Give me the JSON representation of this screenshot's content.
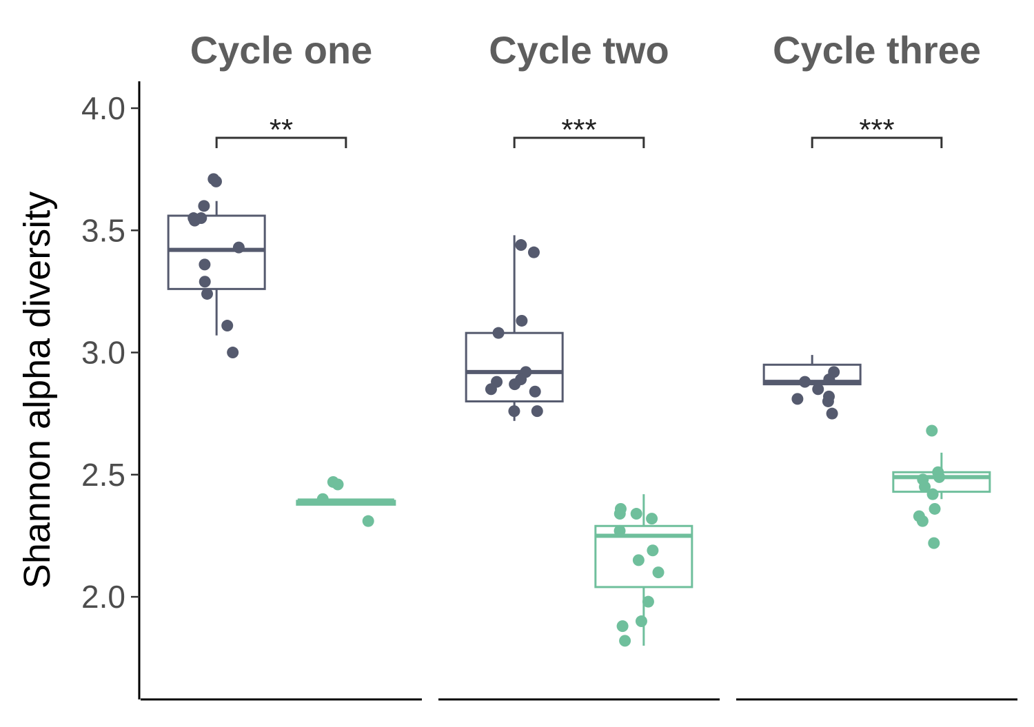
{
  "chart_data": {
    "type": "box",
    "ylabel": "Shannon alpha diversity",
    "y_ticks": [
      "2.0",
      "2.5",
      "3.0",
      "3.5",
      "4.0"
    ],
    "y_tick_values": [
      2.0,
      2.5,
      3.0,
      3.5,
      4.0
    ],
    "ylim": [
      1.58,
      4.11
    ],
    "grid": false,
    "legend": "none",
    "series_colors": [
      "#555a6e",
      "#6fbf9c"
    ],
    "panels": [
      {
        "title": "Cycle one",
        "significance": "**",
        "groups": [
          {
            "color": "#555a6e",
            "box": {
              "q1": 3.26,
              "median": 3.42,
              "q3": 3.56,
              "whisker_low": 3.07,
              "whisker_high": 3.62
            },
            "points": [
              3.71,
              3.7,
              3.6,
              3.55,
              3.55,
              3.54,
              3.43,
              3.36,
              3.29,
              3.24,
              3.11,
              3.0
            ]
          },
          {
            "color": "#6fbf9c",
            "box": {
              "q1": 2.38,
              "median": 2.39,
              "q3": 2.39,
              "whisker_low": 2.38,
              "whisker_high": 2.4
            },
            "points": [
              2.47,
              2.46,
              2.4,
              2.31
            ]
          }
        ]
      },
      {
        "title": "Cycle two",
        "significance": "***",
        "groups": [
          {
            "color": "#555a6e",
            "box": {
              "q1": 2.8,
              "median": 2.92,
              "q3": 3.08,
              "whisker_low": 2.72,
              "whisker_high": 3.48
            },
            "points": [
              3.44,
              3.41,
              3.13,
              3.08,
              2.92,
              2.89,
              2.88,
              2.87,
              2.85,
              2.84,
              2.76,
              2.76
            ]
          },
          {
            "color": "#6fbf9c",
            "box": {
              "q1": 2.04,
              "median": 2.25,
              "q3": 2.29,
              "whisker_low": 1.8,
              "whisker_high": 2.42
            },
            "points": [
              2.36,
              2.34,
              2.34,
              2.32,
              2.27,
              2.19,
              2.15,
              2.1,
              1.98,
              1.9,
              1.88,
              1.82
            ]
          }
        ]
      },
      {
        "title": "Cycle three",
        "significance": "***",
        "groups": [
          {
            "color": "#555a6e",
            "box": {
              "q1": 2.87,
              "median": 2.88,
              "q3": 2.95,
              "whisker_low": 2.87,
              "whisker_high": 2.99
            },
            "points": [
              2.92,
              2.89,
              2.88,
              2.85,
              2.82,
              2.81,
              2.8,
              2.75
            ]
          },
          {
            "color": "#6fbf9c",
            "box": {
              "q1": 2.43,
              "median": 2.49,
              "q3": 2.51,
              "whisker_low": 2.4,
              "whisker_high": 2.59
            },
            "points": [
              2.68,
              2.51,
              2.49,
              2.48,
              2.45,
              2.42,
              2.36,
              2.33,
              2.31,
              2.22
            ]
          }
        ]
      }
    ]
  }
}
